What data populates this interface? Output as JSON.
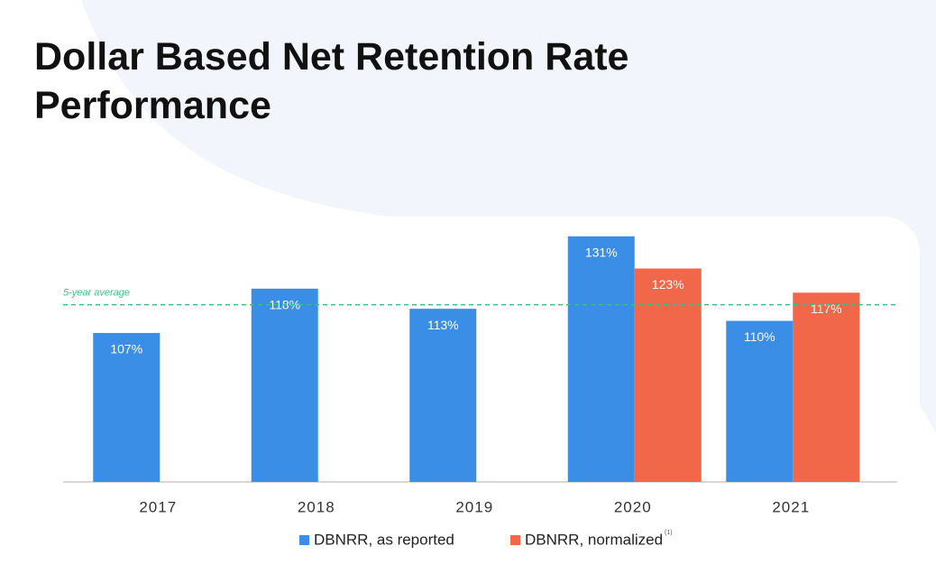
{
  "chart_data": {
    "type": "bar",
    "title": "Dollar Based Net Retention Rate Performance",
    "categories": [
      "2017",
      "2018",
      "2019",
      "2020",
      "2021"
    ],
    "series": [
      {
        "name": "DBNRR, as reported",
        "color": "#3a8ee6",
        "values": [
          107,
          118,
          113,
          131,
          110
        ],
        "value_labels": [
          "107%",
          "118%",
          "113%",
          "131%",
          "110%"
        ]
      },
      {
        "name": "DBNRR, normalized",
        "color": "#f0674a",
        "values": [
          null,
          null,
          null,
          123,
          117
        ],
        "value_labels": [
          null,
          null,
          null,
          "123%",
          "117%"
        ]
      }
    ],
    "legend_note": "(1)",
    "reference_line": {
      "label": "5-year average",
      "value": 114,
      "color": "#3bbf8a"
    },
    "ylim": [
      70,
      135
    ]
  }
}
